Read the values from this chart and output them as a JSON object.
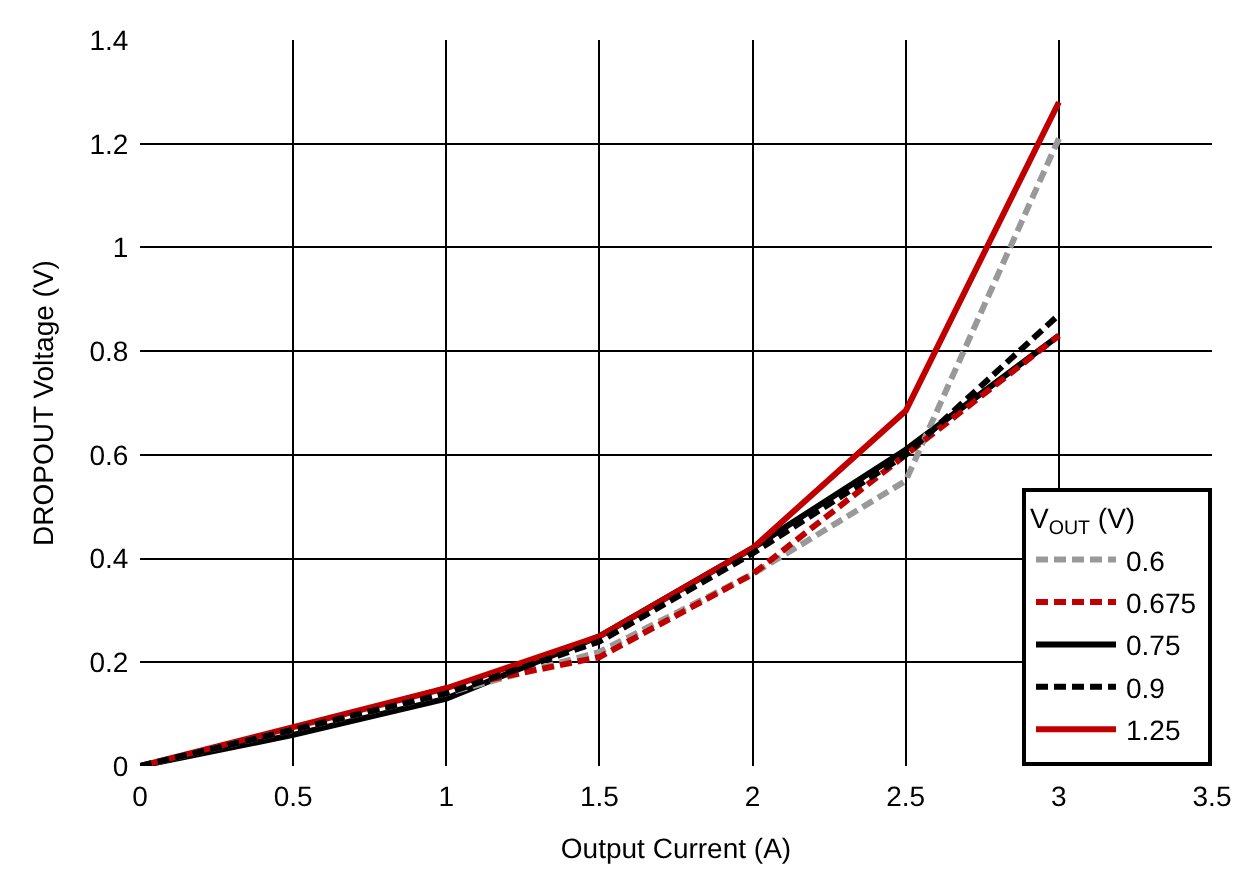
{
  "chart_data": {
    "type": "line",
    "xlabel": "Output Current (A)",
    "ylabel": "DROPOUT Voltage (V)",
    "legend_title": "V$_{OUT}$ (V)",
    "x": [
      0,
      0.5,
      1,
      1.5,
      2,
      2.5,
      3
    ],
    "series": [
      {
        "name": "0.6",
        "color": "#999999",
        "line_style": "dashed",
        "values": [
          0,
          0.07,
          0.14,
          0.22,
          0.37,
          0.55,
          1.21
        ]
      },
      {
        "name": "0.675",
        "color": "#c00000",
        "line_style": "dashed",
        "values": [
          0,
          0.07,
          0.15,
          0.21,
          0.37,
          0.6,
          0.83
        ]
      },
      {
        "name": "0.75",
        "color": "#000000",
        "line_style": "solid",
        "values": [
          0,
          0.06,
          0.13,
          0.25,
          0.42,
          0.61,
          0.83
        ]
      },
      {
        "name": "0.9",
        "color": "#000000",
        "line_style": "dashed",
        "values": [
          0,
          0.07,
          0.14,
          0.24,
          0.41,
          0.6,
          0.87
        ]
      },
      {
        "name": "1.25",
        "color": "#c00000",
        "line_style": "solid",
        "values": [
          0,
          0.075,
          0.15,
          0.25,
          0.42,
          0.685,
          1.28
        ]
      }
    ],
    "xlim": [
      0,
      3.5
    ],
    "xticks": [
      0,
      0.5,
      1,
      1.5,
      2,
      2.5,
      3,
      3.5
    ],
    "ylim": [
      0,
      1.4
    ],
    "yticks": [
      0,
      0.2,
      0.4,
      0.6,
      0.8,
      1,
      1.2,
      1.4
    ],
    "grid": true,
    "legend": "bottom right",
    "marker": "none"
  }
}
